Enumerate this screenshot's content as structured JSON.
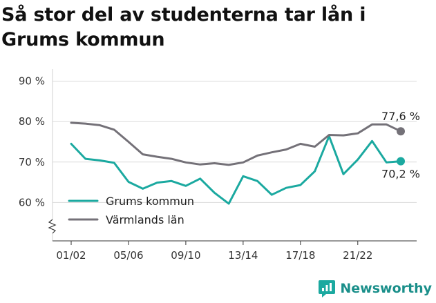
{
  "title": "Så stor del av studenterna tar lån i Grums kommun",
  "brand": {
    "name": "Newsworthy",
    "icon": "newsworthy-logo-icon"
  },
  "chart_data": {
    "type": "line",
    "y_ticks": [
      {
        "value": 60,
        "label": "60 %"
      },
      {
        "value": 70,
        "label": "70 %"
      },
      {
        "value": 80,
        "label": "80 %"
      },
      {
        "value": 90,
        "label": "90 %"
      }
    ],
    "x_ticks": [
      "01/02",
      "05/06",
      "09/10",
      "13/14",
      "17/18",
      "21/22"
    ],
    "ylim": [
      50.5,
      93
    ],
    "y_axis_break": true,
    "grid": true,
    "legend_position": "bottom-left",
    "series": [
      {
        "name": "Grums kommun",
        "color": "#1ba9a0",
        "values": [
          74.5,
          70.8,
          70.4,
          69.8,
          65.1,
          63.4,
          64.9,
          65.3,
          64.1,
          65.9,
          62.4,
          59.7,
          66.5,
          65.3,
          61.9,
          63.6,
          64.3,
          67.7,
          76.4,
          67.0,
          70.6,
          75.2,
          69.9,
          70.2
        ],
        "end_label": "70,2 %"
      },
      {
        "name": "Värmlands län",
        "color": "#747178",
        "values": [
          79.7,
          79.5,
          79.1,
          78.0,
          75.0,
          71.9,
          71.3,
          70.8,
          69.9,
          69.4,
          69.7,
          69.3,
          69.9,
          71.6,
          72.4,
          73.1,
          74.5,
          73.8,
          76.7,
          76.6,
          77.1,
          79.3,
          79.3,
          77.6
        ],
        "end_label": "77,6 %"
      }
    ]
  }
}
